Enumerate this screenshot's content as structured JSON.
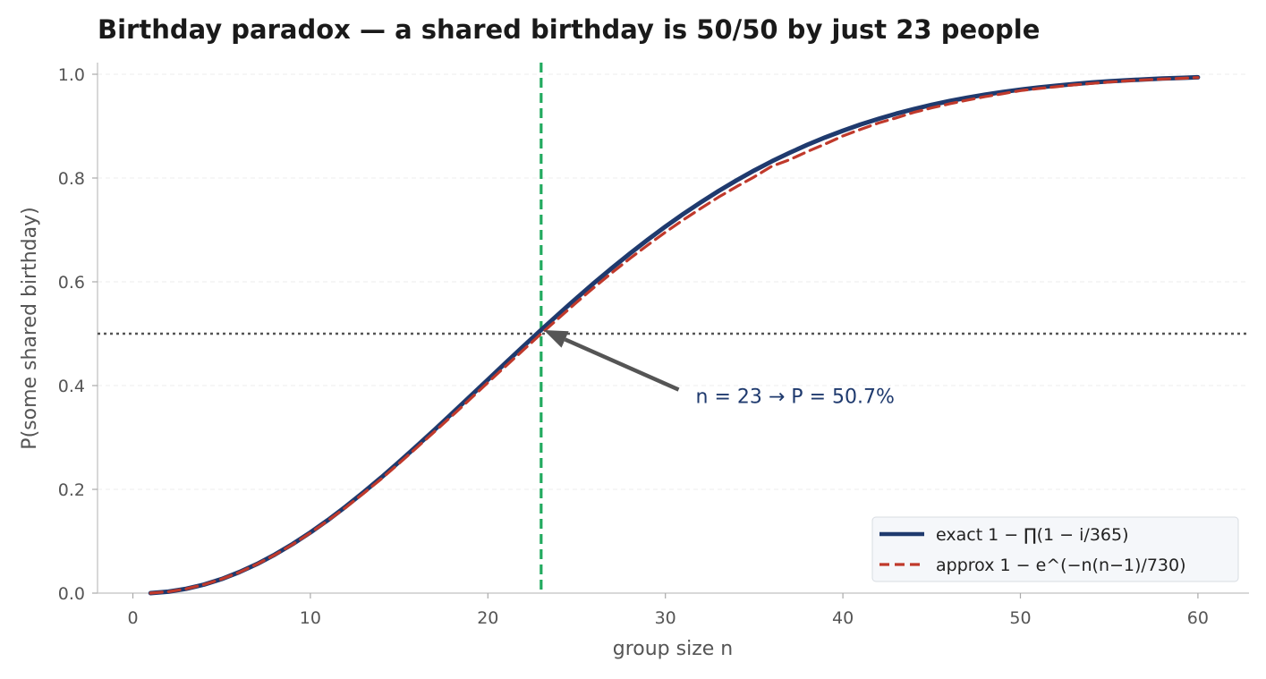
{
  "chart_data": {
    "type": "line",
    "title": "Birthday paradox — a shared birthday is 50/50 by just 23 people",
    "xlabel": "group size n",
    "ylabel": "P(some shared birthday)",
    "xlim": [
      -2,
      63
    ],
    "ylim": [
      0,
      1.02
    ],
    "xticks": [
      0,
      10,
      20,
      30,
      40,
      50,
      60
    ],
    "xtick_labels": [
      "0",
      "10",
      "20",
      "30",
      "40",
      "50",
      "60"
    ],
    "yticks": [
      0.0,
      0.2,
      0.4,
      0.6,
      0.8,
      1.0
    ],
    "ytick_labels": [
      "0.0",
      "0.2",
      "0.4",
      "0.6",
      "0.8",
      "1.0"
    ],
    "grid": "y",
    "legend_position": "bottom-right",
    "series": [
      {
        "name": "exact  1 − ∏(1 − i/365)",
        "color": "#1f3a6e",
        "style": "solid",
        "x": [
          1,
          2,
          3,
          4,
          5,
          6,
          7,
          8,
          9,
          10,
          11,
          12,
          13,
          14,
          15,
          16,
          17,
          18,
          19,
          20,
          21,
          22,
          23,
          24,
          25,
          26,
          27,
          28,
          29,
          30,
          31,
          32,
          33,
          34,
          35,
          36,
          37,
          38,
          39,
          40,
          41,
          42,
          43,
          44,
          45,
          46,
          47,
          48,
          49,
          50,
          51,
          52,
          53,
          54,
          55,
          56,
          57,
          58,
          59,
          60
        ],
        "y": [
          0.0,
          0.0027,
          0.0082,
          0.0164,
          0.0271,
          0.0405,
          0.0562,
          0.0743,
          0.0946,
          0.1169,
          0.1411,
          0.167,
          0.1944,
          0.2231,
          0.2529,
          0.2836,
          0.315,
          0.3469,
          0.3791,
          0.4114,
          0.4437,
          0.4757,
          0.5073,
          0.5383,
          0.5687,
          0.5982,
          0.6269,
          0.6545,
          0.681,
          0.7063,
          0.7305,
          0.7533,
          0.775,
          0.7953,
          0.8144,
          0.8322,
          0.8487,
          0.8641,
          0.8782,
          0.8912,
          0.9032,
          0.914,
          0.9239,
          0.9329,
          0.941,
          0.9483,
          0.9548,
          0.9606,
          0.9658,
          0.9704,
          0.9744,
          0.978,
          0.9811,
          0.9839,
          0.9863,
          0.9883,
          0.9901,
          0.9917,
          0.993,
          0.9941
        ]
      },
      {
        "name": "approx  1 − e^(−n(n−1)/730)",
        "color": "#c0392b",
        "style": "dashed",
        "x": [
          1,
          2,
          3,
          4,
          5,
          6,
          7,
          8,
          9,
          10,
          11,
          12,
          13,
          14,
          15,
          16,
          17,
          18,
          19,
          20,
          21,
          22,
          23,
          24,
          25,
          26,
          27,
          28,
          29,
          30,
          31,
          32,
          33,
          34,
          35,
          36,
          37,
          38,
          39,
          40,
          41,
          42,
          43,
          44,
          45,
          46,
          47,
          48,
          49,
          50,
          51,
          52,
          53,
          54,
          55,
          56,
          57,
          58,
          59,
          60
        ],
        "y": [
          0.0,
          0.0027,
          0.0082,
          0.0163,
          0.027,
          0.0402,
          0.0559,
          0.0738,
          0.0939,
          0.116,
          0.14,
          0.1654,
          0.1923,
          0.2203,
          0.2502,
          0.2805,
          0.3113,
          0.3423,
          0.3739,
          0.4058,
          0.4373,
          0.4686,
          0.4998,
          0.5304,
          0.5605,
          0.5896,
          0.6177,
          0.6448,
          0.6707,
          0.6956,
          0.7191,
          0.7415,
          0.7633,
          0.7832,
          0.802,
          0.8227,
          0.8353,
          0.851,
          0.8655,
          0.8811,
          0.8938,
          0.9061,
          0.9159,
          0.9266,
          0.9351,
          0.9429,
          0.9502,
          0.9568,
          0.9624,
          0.9685,
          0.9724,
          0.9759,
          0.9795,
          0.9823,
          0.985,
          0.9873,
          0.9891,
          0.9907,
          0.9921,
          0.9936
        ]
      }
    ],
    "reference_lines": [
      {
        "orientation": "vertical",
        "value": 23,
        "color": "#22aa5f",
        "style": "dashed"
      },
      {
        "orientation": "horizontal",
        "value": 0.5,
        "color": "#555555",
        "style": "dotted"
      }
    ],
    "annotation": {
      "text": "n = 23 → P = 50.7%",
      "point": [
        23,
        0.507
      ],
      "text_at": [
        31,
        0.38
      ],
      "text_color": "#1f3a6e",
      "arrow_color": "#555555"
    }
  }
}
